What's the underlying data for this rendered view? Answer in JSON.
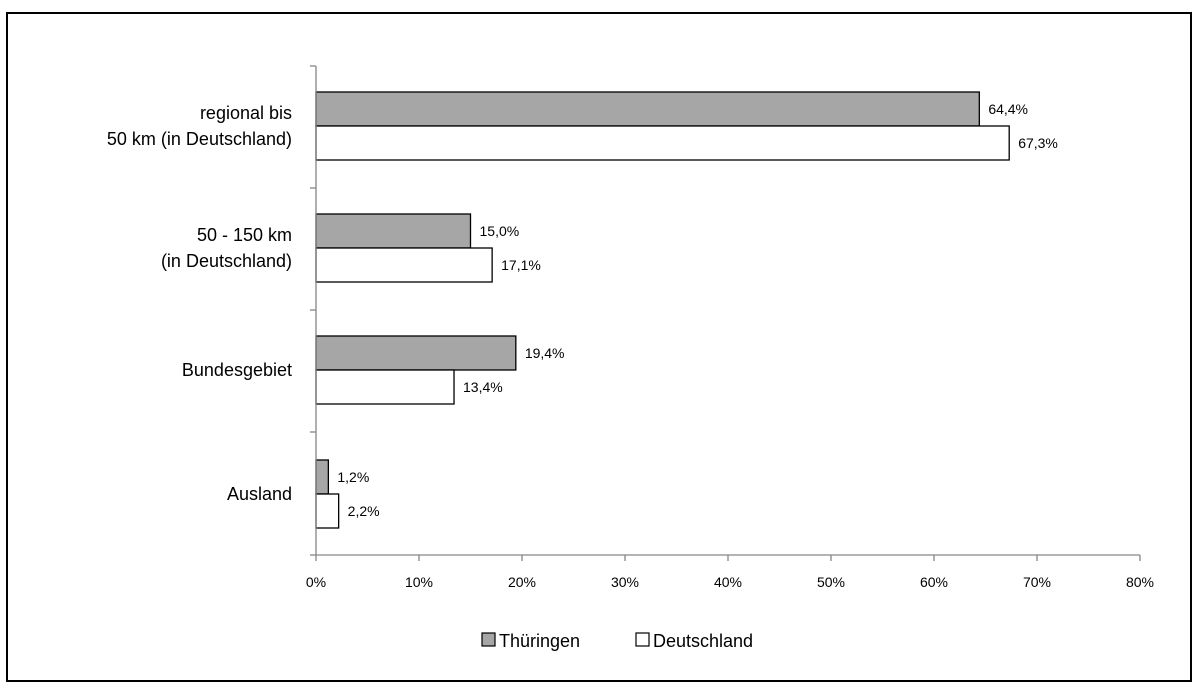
{
  "chart_data": {
    "type": "bar",
    "orientation": "horizontal",
    "categories": [
      [
        "regional bis",
        "50 km (in Deutschland)"
      ],
      [
        "50 - 150 km",
        "(in Deutschland)"
      ],
      [
        "Bundesgebiet"
      ],
      [
        "Ausland"
      ]
    ],
    "series": [
      {
        "name": "Thüringen",
        "color": "#a6a6a6",
        "values": [
          64.4,
          15.0,
          19.4,
          1.2
        ],
        "labels": [
          "64,4%",
          "15,0%",
          "19,4%",
          "1,2%"
        ]
      },
      {
        "name": "Deutschland",
        "color": "#ffffff",
        "values": [
          67.3,
          17.1,
          13.4,
          2.2
        ],
        "labels": [
          "67,3%",
          "17,1%",
          "13,4%",
          "2,2%"
        ]
      }
    ],
    "x_ticks": [
      "0%",
      "10%",
      "20%",
      "30%",
      "40%",
      "50%",
      "60%",
      "70%",
      "80%"
    ],
    "xlim": [
      0,
      80
    ],
    "grid": false,
    "legend_position": "bottom",
    "bar_border_color": "#000000"
  }
}
